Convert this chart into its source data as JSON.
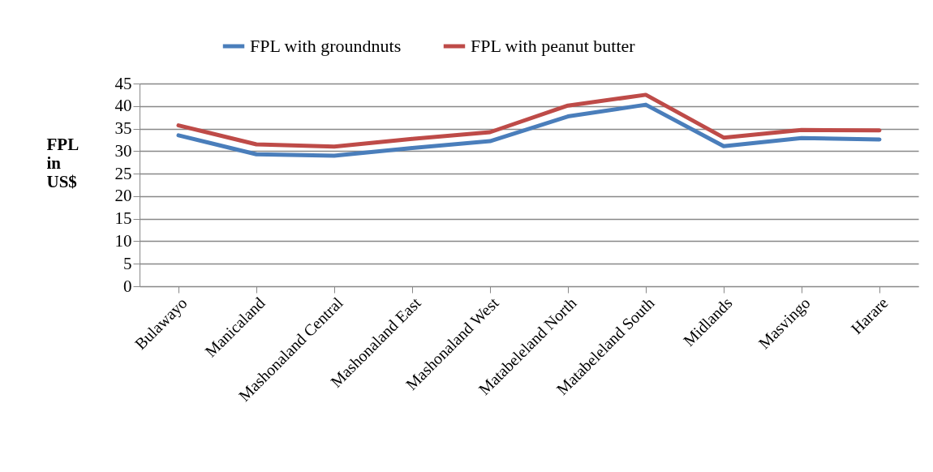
{
  "chart_data": {
    "type": "line",
    "ylabel": "FPL\n in\n US$",
    "categories": [
      "Bulawayo",
      "Manicaland",
      "Mashonaland Central",
      "Mashonaland East",
      "Mashonaland West",
      "Matabeleland North",
      "Matabeleland South",
      "Midlands",
      "Masvingo",
      "Harare"
    ],
    "series": [
      {
        "name": "FPL with groundnuts",
        "color": "#4a7ebb",
        "values": [
          33.5,
          29.3,
          29.0,
          30.7,
          32.2,
          37.7,
          40.3,
          31.1,
          32.9,
          32.6
        ]
      },
      {
        "name": "FPL with peanut butter",
        "color": "#be4b48",
        "values": [
          35.7,
          31.5,
          31.0,
          32.7,
          34.2,
          40.1,
          42.5,
          33.0,
          34.7,
          34.6
        ]
      }
    ],
    "ylim": [
      0,
      45
    ],
    "yticks": [
      0,
      5,
      10,
      15,
      20,
      25,
      30,
      35,
      40,
      45
    ],
    "grid": "y",
    "legend": "top",
    "marker": "none",
    "line_style": "solid"
  }
}
